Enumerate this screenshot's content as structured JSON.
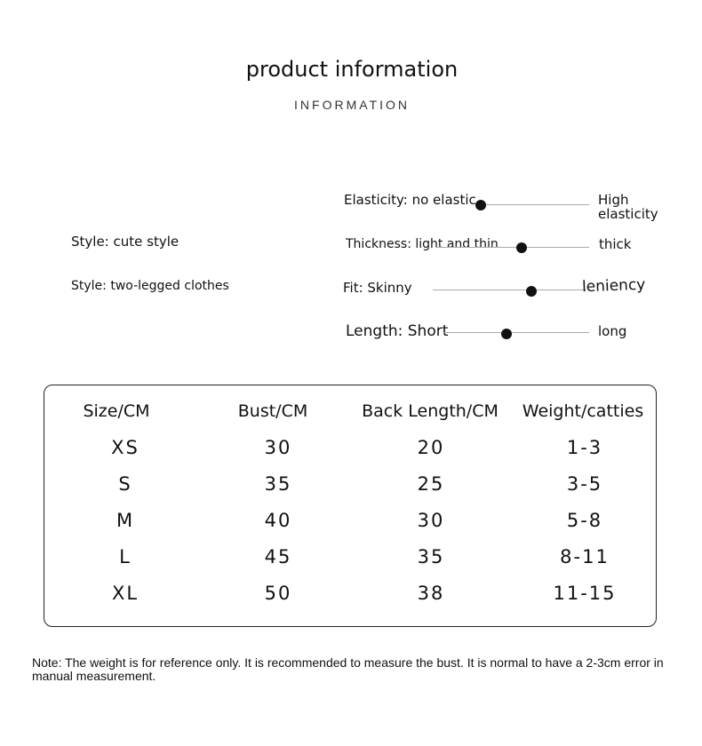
{
  "header": {
    "title": "product information",
    "subtitle": "INFORMATION"
  },
  "styles": [
    "Style: cute style",
    "Style: two-legged clothes"
  ],
  "attributes": [
    {
      "label": "Elasticity: no elastic",
      "right": "High elasticity",
      "level": 0.03
    },
    {
      "label": "Thickness: light and thin",
      "right": "thick",
      "level": 0.56
    },
    {
      "label": "Fit: Skinny",
      "right": "leniency",
      "level": 0.64
    },
    {
      "label": "Length: Short",
      "right": "long",
      "level": 0.43
    }
  ],
  "table": {
    "headers": [
      "Size/CM",
      "Bust/CM",
      "Back Length/CM",
      "Weight/catties"
    ],
    "rows": [
      [
        "XS",
        "30",
        "20",
        "1-3"
      ],
      [
        "S",
        "35",
        "25",
        "3-5"
      ],
      [
        "M",
        "40",
        "30",
        "5-8"
      ],
      [
        "L",
        "45",
        "35",
        "8-11"
      ],
      [
        "XL",
        "50",
        "38",
        "11-15"
      ]
    ]
  },
  "note": "Note: The weight is for reference only. It is recommended to measure the bust. It is normal to have a 2-3cm error in manual measurement."
}
